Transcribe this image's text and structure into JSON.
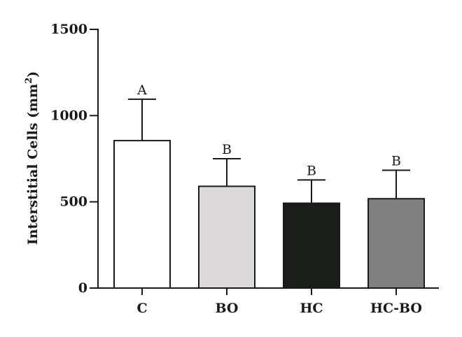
{
  "chart_data": {
    "type": "bar",
    "categories": [
      "C",
      "BO",
      "HC",
      "HC-BO"
    ],
    "values": [
      855,
      590,
      492,
      518
    ],
    "errors": [
      240,
      160,
      135,
      165
    ],
    "significance": [
      "A",
      "B",
      "B",
      "B"
    ],
    "colors": [
      "#ffffff",
      "#dcd9da",
      "#1b1d1b",
      "#808080"
    ],
    "title": "",
    "xlabel": "",
    "ylabel": "Interstitial Cells (mm",
    "ylabel_superscript": "2",
    "ylabel_close": ")",
    "ylim": [
      0,
      1500
    ],
    "yticks": [
      "0",
      "500",
      "1000",
      "1500"
    ],
    "grid": false
  }
}
